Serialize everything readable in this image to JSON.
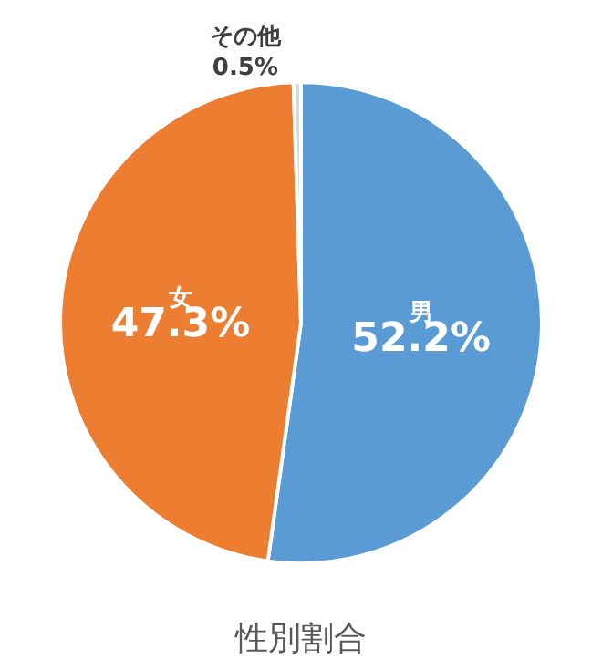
{
  "chart_data": {
    "type": "pie",
    "title": "性別割合",
    "categories": [
      "男",
      "女",
      "その他"
    ],
    "values": [
      52.2,
      47.3,
      0.5
    ],
    "value_labels": [
      "52.2%",
      "47.3%",
      "0.5%"
    ],
    "colors": [
      "#5b9bd5",
      "#ed7d31",
      "#d9d9d9"
    ],
    "legend": false
  }
}
